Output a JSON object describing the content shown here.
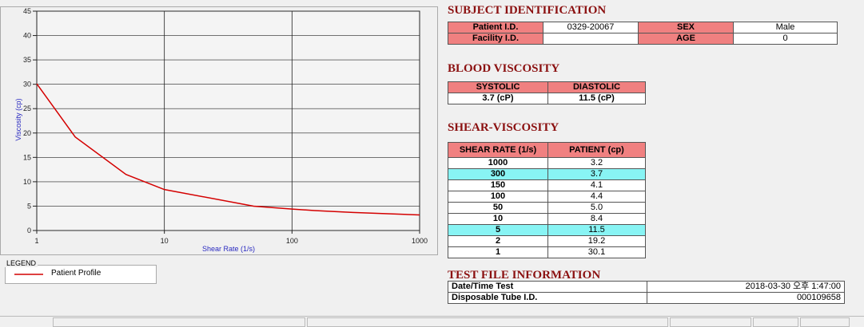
{
  "chart_data": {
    "type": "line",
    "xlabel": "Shear Rate (1/s)",
    "ylabel": "Viscosity (cp)",
    "xlog": true,
    "xlim": [
      1,
      1000
    ],
    "xticks": [
      1,
      10,
      100,
      1000
    ],
    "ylim": [
      0,
      45
    ],
    "yticks": [
      0,
      5,
      10,
      15,
      20,
      25,
      30,
      35,
      40,
      45
    ],
    "grid": true,
    "x": [
      1,
      2,
      5,
      10,
      50,
      100,
      150,
      300,
      1000
    ],
    "series": [
      {
        "name": "Patient Profile",
        "color": "#d40000",
        "values": [
          30.1,
          19.2,
          11.5,
          8.4,
          5.0,
          4.4,
          4.1,
          3.7,
          3.2
        ]
      }
    ],
    "legend_title": "LEGEND"
  },
  "subject": {
    "title": "SUBJECT IDENTIFICATION",
    "patient_id_label": "Patient I.D.",
    "patient_id": "0329-20067",
    "facility_id_label": "Facility I.D.",
    "sex_label": "SEX",
    "sex": "Male",
    "age_label": "AGE",
    "age": 0
  },
  "blood": {
    "title": "BLOOD VISCOSITY",
    "systolic_label": "SYSTOLIC",
    "diastolic_label": "DIASTOLIC",
    "systolic": "3.7 (cP)",
    "diastolic": "11.5 (cP)"
  },
  "shear": {
    "title": "SHEAR-VISCOSITY",
    "columns": [
      "SHEAR RATE (1/s)",
      "PATIENT (cp)"
    ],
    "rows": [
      {
        "rate": "1000",
        "patient": "3.2",
        "highlight": false
      },
      {
        "rate": "300",
        "patient": "3.7",
        "highlight": true
      },
      {
        "rate": "150",
        "patient": "4.1",
        "highlight": false
      },
      {
        "rate": "100",
        "patient": "4.4",
        "highlight": false
      },
      {
        "rate": "50",
        "patient": "5.0",
        "highlight": false
      },
      {
        "rate": "10",
        "patient": "8.4",
        "highlight": false
      },
      {
        "rate": "5",
        "patient": "11.5",
        "highlight": true
      },
      {
        "rate": "2",
        "patient": "19.2",
        "highlight": false
      },
      {
        "rate": "1",
        "patient": "30.1",
        "highlight": false
      }
    ]
  },
  "test_file": {
    "title": "TEST FILE INFORMATION",
    "date_label": "Date/Time Test",
    "date": "2018-03-30  오후 1:47:00",
    "tube_label": "Disposable Tube I.D.",
    "tube": "000109658"
  }
}
